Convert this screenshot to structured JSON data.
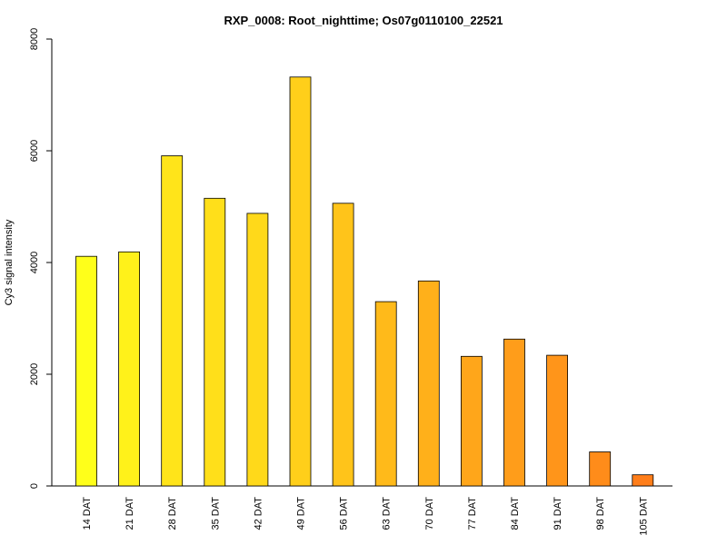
{
  "chart_data": {
    "type": "bar",
    "title": "RXP_0008: Root_nighttime; Os07g0110100_22521",
    "xlabel": "",
    "ylabel": "Cy3 signal intensity",
    "ylim": [
      0,
      8000
    ],
    "yticks": [
      0,
      2000,
      4000,
      6000,
      8000
    ],
    "categories": [
      "14 DAT",
      "21 DAT",
      "28 DAT",
      "35 DAT",
      "42 DAT",
      "49 DAT",
      "56 DAT",
      "63 DAT",
      "70 DAT",
      "77 DAT",
      "84 DAT",
      "91 DAT",
      "98 DAT",
      "105 DAT"
    ],
    "values": [
      4110,
      4190,
      5910,
      5150,
      4880,
      7320,
      5060,
      3300,
      3670,
      2320,
      2630,
      2340,
      610,
      200
    ],
    "colors": [
      "#ffff1a",
      "#fff11a",
      "#ffe41a",
      "#ffdf1a",
      "#ffd91a",
      "#ffcf1a",
      "#ffc41a",
      "#ffba1a",
      "#ffb01a",
      "#ffa61a",
      "#ff9d1a",
      "#ff951a",
      "#ff8c1a",
      "#ff7e1a"
    ],
    "grid": false,
    "legend": "none"
  }
}
